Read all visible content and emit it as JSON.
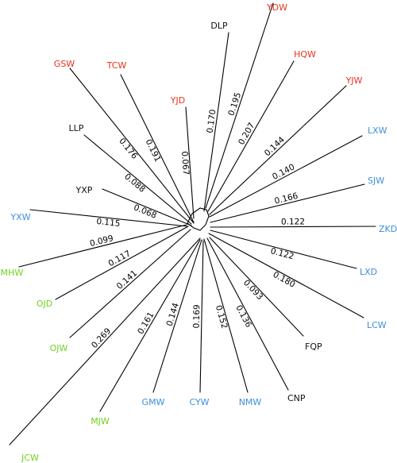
{
  "colors": {
    "red": "#e8321e",
    "blue": "#3d8ee0",
    "green": "#6fd21d",
    "black": "#111111"
  },
  "tree": {
    "type": "unrooted-phylogeny",
    "branches": [
      {
        "id": "yjd",
        "length": "0.067",
        "tip": {
          "label": "YJD",
          "color": "red"
        }
      },
      {
        "id": "ydw",
        "length": "0.195",
        "tip": {
          "label": "YDW",
          "color": "red"
        }
      },
      {
        "id": "dlp",
        "length": "0.170",
        "tip": {
          "label": "DLP",
          "color": "black"
        }
      },
      {
        "id": "hqw",
        "length": "0.207",
        "tip": {
          "label": "HQW",
          "color": "red"
        }
      },
      {
        "id": "yjw",
        "length": "0.144",
        "tip": {
          "label": "YJW",
          "color": "red"
        }
      },
      {
        "id": "lxw",
        "length": "0.140",
        "tip": {
          "label": "LXW",
          "color": "blue"
        }
      },
      {
        "id": "sjw",
        "length": "0.166",
        "tip": {
          "label": "SJW",
          "color": "blue"
        }
      },
      {
        "id": "zkd",
        "length": "0.122",
        "tip": {
          "label": "ZKD",
          "color": "blue"
        }
      },
      {
        "id": "lxd",
        "length": "0.122",
        "tip": {
          "label": "LXD",
          "color": "blue"
        }
      },
      {
        "id": "lcw",
        "length": "0.180",
        "tip": {
          "label": "LCW",
          "color": "blue"
        }
      },
      {
        "id": "fqp",
        "length": "0.093",
        "tip": {
          "label": "FQP",
          "color": "black"
        }
      },
      {
        "id": "cnp",
        "length": "0.136",
        "tip": {
          "label": "CNP",
          "color": "black"
        }
      },
      {
        "id": "nmw",
        "length": "0.152",
        "tip": {
          "label": "NMW",
          "color": "blue"
        }
      },
      {
        "id": "cyw",
        "length": "0.169",
        "tip": {
          "label": "CYW",
          "color": "blue"
        }
      },
      {
        "id": "gmw",
        "length": "0.144",
        "tip": {
          "label": "GMW",
          "color": "blue"
        }
      },
      {
        "id": "mjw",
        "length": "0.161",
        "tip": {
          "label": "MJW",
          "color": "green"
        }
      },
      {
        "id": "jcw",
        "length": "0.269",
        "tip": {
          "label": "JCW",
          "color": "green"
        }
      },
      {
        "id": "ojw",
        "length": "0.141",
        "tip": {
          "label": "OJW",
          "color": "green"
        }
      },
      {
        "id": "ojd",
        "length": "0.117",
        "tip": {
          "label": "OJD",
          "color": "green"
        }
      },
      {
        "id": "mhw",
        "length": "0.099",
        "tip": {
          "label": "MHW",
          "color": "green"
        }
      },
      {
        "id": "yxw",
        "length": "0.115",
        "tip": {
          "label": "YXW",
          "color": "blue"
        }
      },
      {
        "id": "yxp",
        "length": "0.068",
        "tip": {
          "label": "YXP",
          "color": "black"
        }
      },
      {
        "id": "llp",
        "length": "0.088",
        "tip": {
          "label": "LLP",
          "color": "black"
        }
      },
      {
        "id": "tcw",
        "length": "0.191",
        "tip": {
          "label": "TCW",
          "color": "red"
        }
      },
      {
        "id": "gsw",
        "length": "0.176",
        "tip": {
          "label": "GSW",
          "color": "red"
        }
      }
    ]
  }
}
